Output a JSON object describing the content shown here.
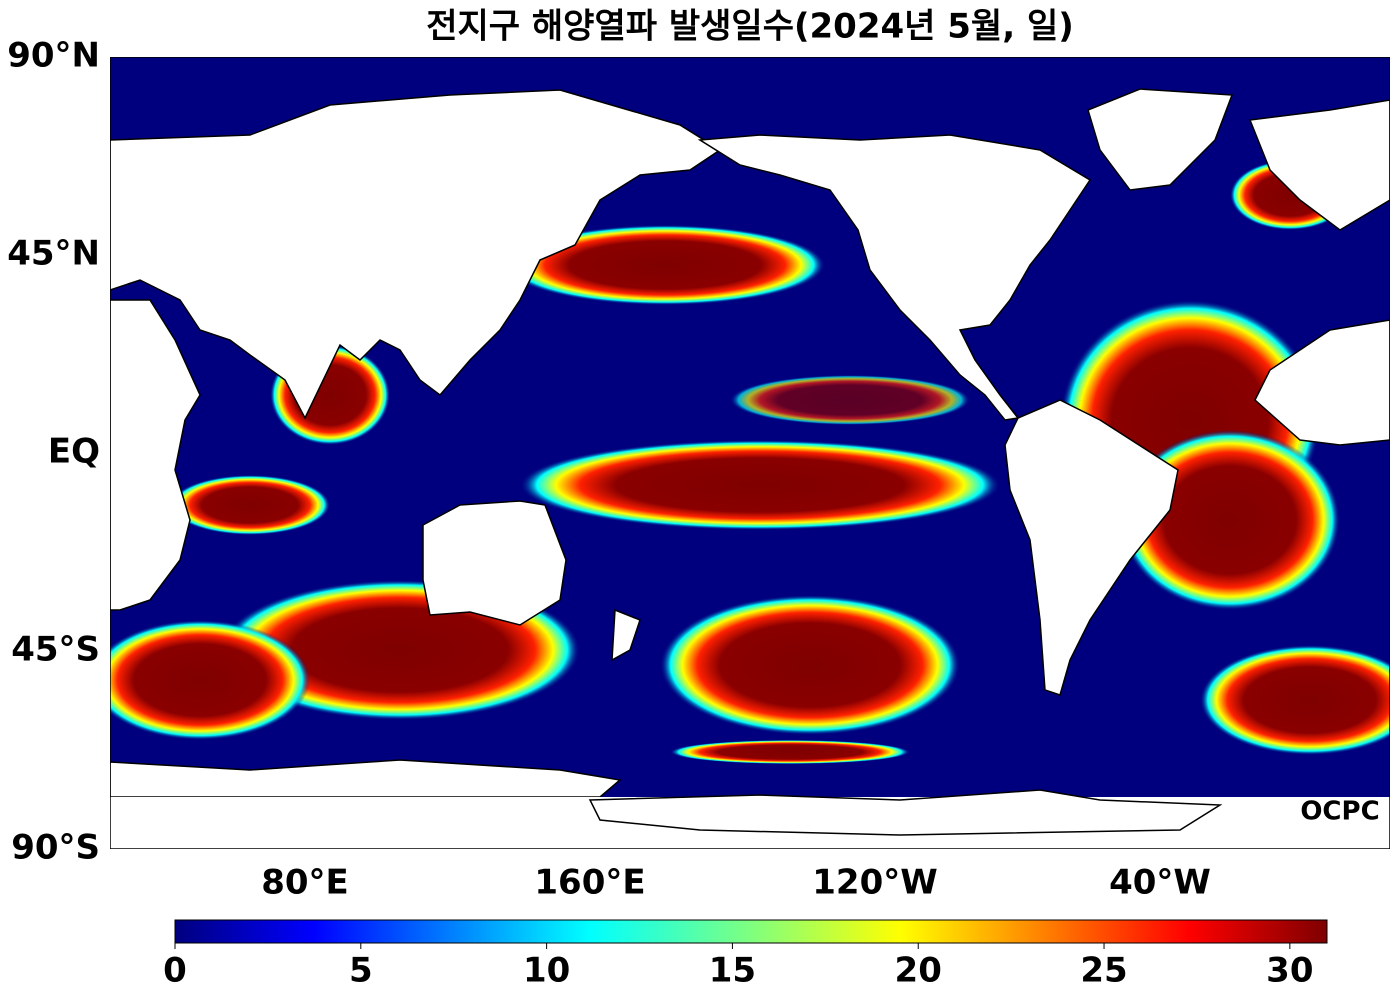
{
  "title": "전지구 해양열파 발생일수(2024년 5월, 일)",
  "map": {
    "lat_labels": [
      "90°N",
      "45°N",
      "EQ",
      "45°S",
      "90°S"
    ],
    "lon_labels": [
      "80°E",
      "160°E",
      "120°W",
      "40°W"
    ],
    "logo": "OCPC"
  },
  "colorbar": {
    "range": [
      0,
      31
    ],
    "ticks": [
      0,
      5,
      10,
      15,
      20,
      25,
      30
    ]
  }
}
